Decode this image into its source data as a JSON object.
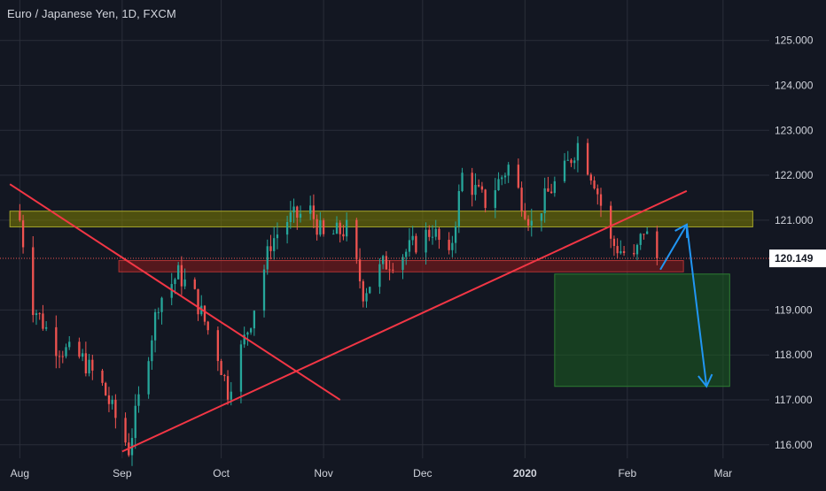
{
  "header": {
    "title": "Euro / Japanese Yen, 1D, FXCM"
  },
  "colors": {
    "background": "#131722",
    "grid": "#2a2e39",
    "up": "#26a69a",
    "down": "#ef5350",
    "axis_text": "#d1d4dc",
    "trendline": "#f23645",
    "resistance_zone": "#808000",
    "support_zone": "#8b1a1a",
    "target_zone": "#1b5e20",
    "arrow": "#2196f3",
    "price_label_bg": "#ffffff",
    "price_label_text": "#131722"
  },
  "chart_data": {
    "type": "candlestick",
    "symbol": "EURJPY",
    "timeframe": "1D",
    "x_ticks": [
      "Aug",
      "Sep",
      "Oct",
      "Nov",
      "Dec",
      "2020",
      "Feb",
      "Mar"
    ],
    "y_ticks": [
      "125.000",
      "124.000",
      "123.000",
      "122.000",
      "121.000",
      "119.000",
      "118.000",
      "117.000",
      "116.000"
    ],
    "ylim": [
      115.7,
      125.9
    ],
    "last_price": "120.149",
    "grid": true,
    "price_path": [
      [
        "2019-08-01",
        121.0
      ],
      [
        "2019-08-05",
        119.1
      ],
      [
        "2019-08-12",
        118.2
      ],
      [
        "2019-08-20",
        117.9
      ],
      [
        "2019-08-26",
        117.3
      ],
      [
        "2019-09-03",
        115.9
      ],
      [
        "2019-09-12",
        119.2
      ],
      [
        "2019-09-18",
        119.8
      ],
      [
        "2019-09-23",
        119.3
      ],
      [
        "2019-09-30",
        118.0
      ],
      [
        "2019-10-03",
        117.2
      ],
      [
        "2019-10-10",
        118.8
      ],
      [
        "2019-10-16",
        120.5
      ],
      [
        "2019-10-21",
        121.0
      ],
      [
        "2019-10-28",
        121.2
      ],
      [
        "2019-11-01",
        120.6
      ],
      [
        "2019-11-08",
        120.8
      ],
      [
        "2019-11-13",
        119.4
      ],
      [
        "2019-11-19",
        120.0
      ],
      [
        "2019-11-26",
        120.3
      ],
      [
        "2019-12-04",
        120.8
      ],
      [
        "2019-12-09",
        120.1
      ],
      [
        "2019-12-13",
        122.0
      ],
      [
        "2019-12-20",
        121.4
      ],
      [
        "2019-12-27",
        122.2
      ],
      [
        "2020-01-03",
        120.9
      ],
      [
        "2020-01-08",
        121.6
      ],
      [
        "2020-01-13",
        122.1
      ],
      [
        "2020-01-17",
        122.7
      ],
      [
        "2020-01-22",
        121.9
      ],
      [
        "2020-01-27",
        120.5
      ],
      [
        "2020-02-03",
        120.1
      ],
      [
        "2020-02-06",
        120.8
      ],
      [
        "2020-02-10",
        120.15
      ]
    ],
    "drawings": {
      "resistance_zone": {
        "from": "2019-07-29",
        "to": "2020-03-10",
        "low": 120.85,
        "high": 121.2
      },
      "support_zone": {
        "from": "2019-08-31",
        "to": "2020-02-18",
        "low": 119.85,
        "high": 120.1
      },
      "target_zone": {
        "from": "2020-01-10",
        "to": "2020-03-03",
        "low": 117.3,
        "high": 119.8
      },
      "descending_trendline": [
        [
          "2019-07-29",
          121.8
        ],
        [
          "2019-11-06",
          117.0
        ]
      ],
      "ascending_trendline": [
        [
          "2019-09-01",
          115.85
        ],
        [
          "2020-02-19",
          121.65
        ]
      ],
      "forecast_path": [
        [
          "2020-02-11",
          119.9
        ],
        [
          "2020-02-19",
          120.9
        ],
        [
          "2020-02-25",
          117.3
        ]
      ]
    }
  }
}
